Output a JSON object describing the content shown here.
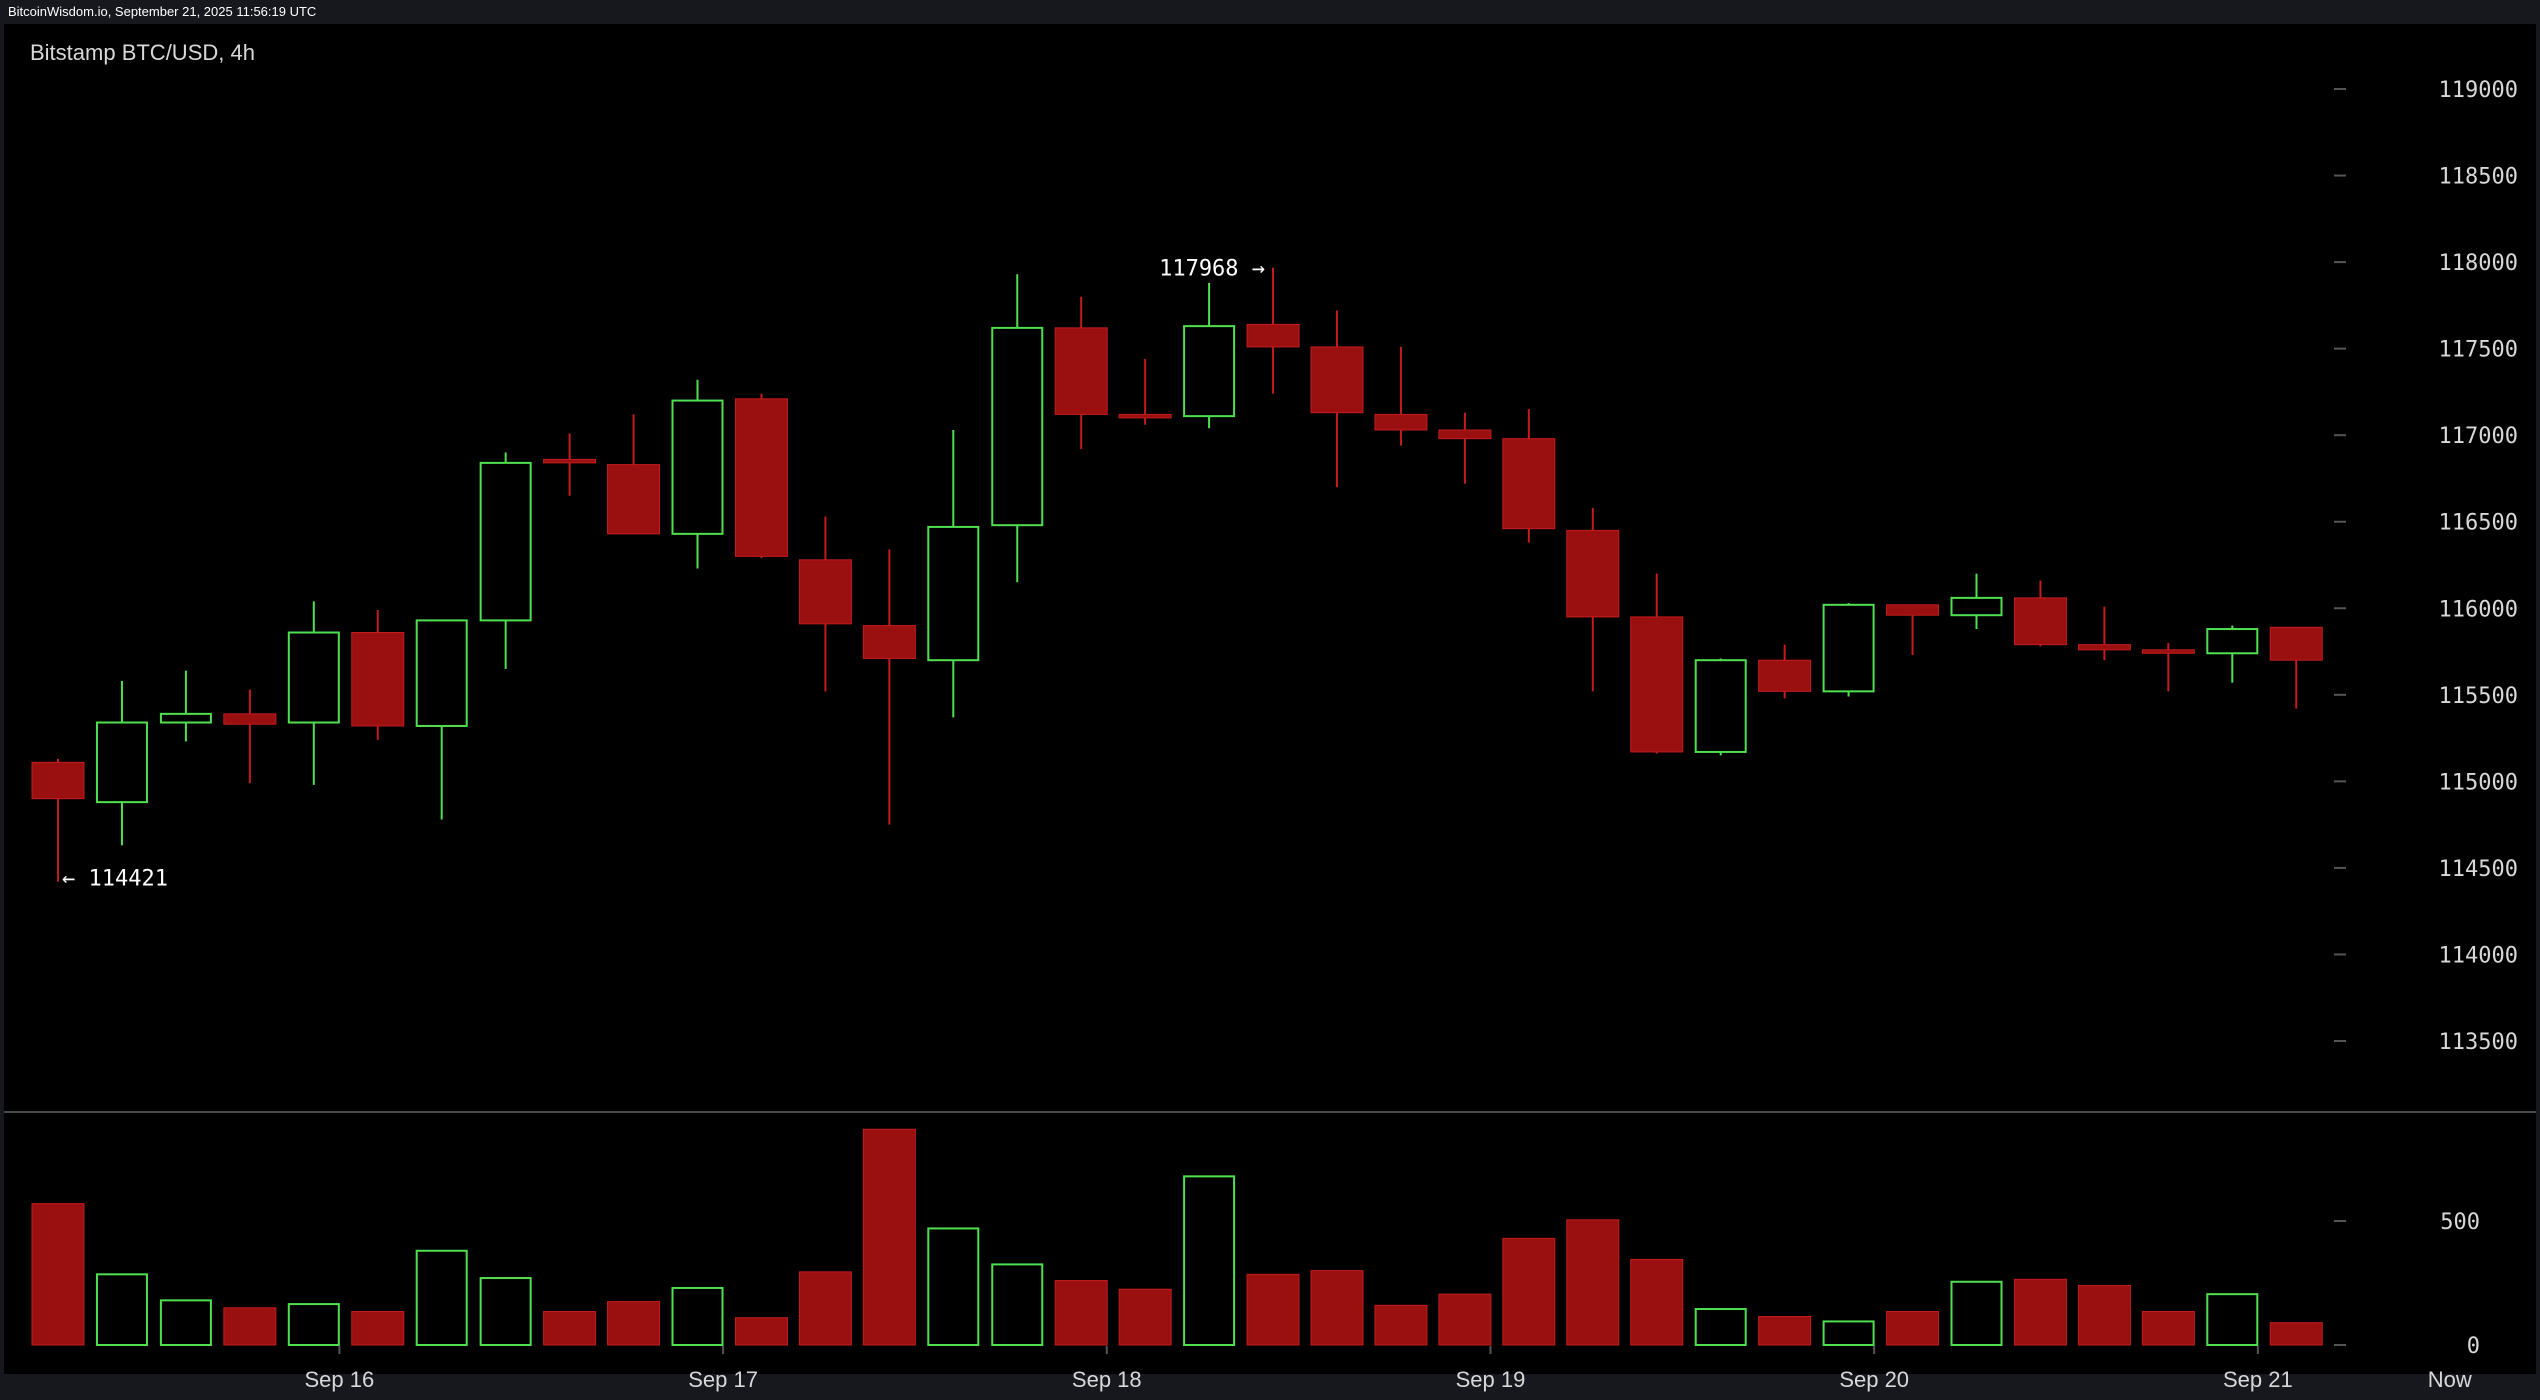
{
  "header": {
    "source": "BitcoinWisdom.io, September 21, 2025 11:56:19 UTC"
  },
  "chart_data": {
    "type": "candlestick",
    "title": "Bitstamp BTC/USD, 4h",
    "price_axis": {
      "ylim": [
        112900,
        119400
      ],
      "ticks": [
        113500,
        114000,
        114500,
        115000,
        115500,
        116000,
        116500,
        117000,
        117500,
        118000,
        118500,
        119000
      ]
    },
    "volume_axis": {
      "ylim": [
        0,
        950
      ],
      "ticks": [
        0,
        500
      ]
    },
    "x_labels": [
      {
        "label": "Sep 16",
        "index": 4.4
      },
      {
        "label": "Sep 17",
        "index": 10.4
      },
      {
        "label": "Sep 18",
        "index": 16.4
      },
      {
        "label": "Sep 19",
        "index": 22.4
      },
      {
        "label": "Sep 20",
        "index": 28.4
      },
      {
        "label": "Sep 21",
        "index": 34.4
      },
      {
        "label": "Now",
        "index": 37.4
      }
    ],
    "annotations": [
      {
        "text": "← 114421",
        "index": 0,
        "price": 114421,
        "side": "right"
      },
      {
        "text": "117968 →",
        "index": 19,
        "price": 117968,
        "side": "left"
      }
    ],
    "candles": [
      {
        "o": 115110,
        "h": 115130,
        "l": 114421,
        "c": 114900,
        "v": 570
      },
      {
        "o": 114880,
        "h": 115580,
        "l": 114630,
        "c": 115340,
        "v": 285
      },
      {
        "o": 115340,
        "h": 115640,
        "l": 115230,
        "c": 115390,
        "v": 180
      },
      {
        "o": 115390,
        "h": 115530,
        "l": 114990,
        "c": 115330,
        "v": 150
      },
      {
        "o": 115340,
        "h": 116040,
        "l": 114980,
        "c": 115860,
        "v": 165
      },
      {
        "o": 115860,
        "h": 115990,
        "l": 115240,
        "c": 115320,
        "v": 135
      },
      {
        "o": 115320,
        "h": 115930,
        "l": 114780,
        "c": 115930,
        "v": 380
      },
      {
        "o": 115930,
        "h": 116900,
        "l": 115650,
        "c": 116840,
        "v": 270
      },
      {
        "o": 116860,
        "h": 117010,
        "l": 116650,
        "c": 116840,
        "v": 135
      },
      {
        "o": 116830,
        "h": 117120,
        "l": 116430,
        "c": 116430,
        "v": 175
      },
      {
        "o": 116430,
        "h": 117320,
        "l": 116230,
        "c": 117200,
        "v": 230
      },
      {
        "o": 117210,
        "h": 117240,
        "l": 116290,
        "c": 116300,
        "v": 110
      },
      {
        "o": 116280,
        "h": 116530,
        "l": 115520,
        "c": 115910,
        "v": 295
      },
      {
        "o": 115900,
        "h": 116340,
        "l": 114750,
        "c": 115710,
        "v": 870
      },
      {
        "o": 115700,
        "h": 117030,
        "l": 115370,
        "c": 116470,
        "v": 470
      },
      {
        "o": 116480,
        "h": 117930,
        "l": 116150,
        "c": 117620,
        "v": 325
      },
      {
        "o": 117620,
        "h": 117800,
        "l": 116920,
        "c": 117120,
        "v": 260
      },
      {
        "o": 117120,
        "h": 117440,
        "l": 117060,
        "c": 117100,
        "v": 225
      },
      {
        "o": 117110,
        "h": 117880,
        "l": 117040,
        "c": 117630,
        "v": 680
      },
      {
        "o": 117640,
        "h": 117968,
        "l": 117240,
        "c": 117510,
        "v": 285
      },
      {
        "o": 117510,
        "h": 117720,
        "l": 116700,
        "c": 117130,
        "v": 300
      },
      {
        "o": 117120,
        "h": 117510,
        "l": 116940,
        "c": 117030,
        "v": 160
      },
      {
        "o": 117030,
        "h": 117130,
        "l": 116720,
        "c": 116980,
        "v": 205
      },
      {
        "o": 116980,
        "h": 117150,
        "l": 116380,
        "c": 116460,
        "v": 430
      },
      {
        "o": 116450,
        "h": 116580,
        "l": 115520,
        "c": 115950,
        "v": 505
      },
      {
        "o": 115950,
        "h": 116200,
        "l": 115160,
        "c": 115170,
        "v": 345
      },
      {
        "o": 115170,
        "h": 115710,
        "l": 115150,
        "c": 115700,
        "v": 145
      },
      {
        "o": 115700,
        "h": 115790,
        "l": 115480,
        "c": 115520,
        "v": 115
      },
      {
        "o": 115520,
        "h": 116030,
        "l": 115490,
        "c": 116020,
        "v": 95
      },
      {
        "o": 116020,
        "h": 116020,
        "l": 115730,
        "c": 115960,
        "v": 135
      },
      {
        "o": 115960,
        "h": 116200,
        "l": 115880,
        "c": 116060,
        "v": 255
      },
      {
        "o": 116060,
        "h": 116160,
        "l": 115780,
        "c": 115790,
        "v": 265
      },
      {
        "o": 115790,
        "h": 116010,
        "l": 115700,
        "c": 115760,
        "v": 240
      },
      {
        "o": 115760,
        "h": 115800,
        "l": 115520,
        "c": 115740,
        "v": 135
      },
      {
        "o": 115740,
        "h": 115900,
        "l": 115570,
        "c": 115880,
        "v": 205
      },
      {
        "o": 115890,
        "h": 115890,
        "l": 115420,
        "c": 115700,
        "v": 90
      }
    ],
    "colors": {
      "up": "#4fe04f",
      "down": "#9a0f0f",
      "down_edge": "#c41c1c",
      "background": "#000000",
      "text": "#d8d8d8"
    }
  }
}
